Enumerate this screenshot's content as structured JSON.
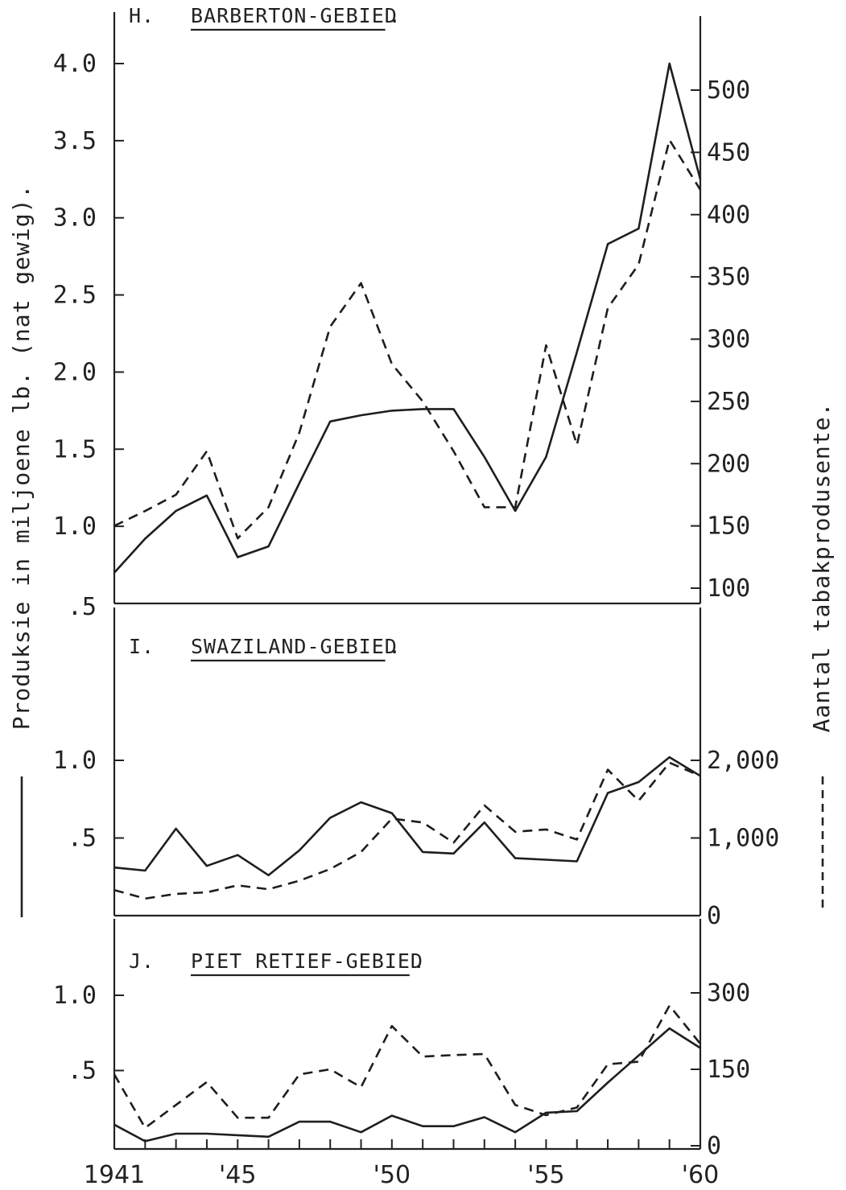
{
  "chart_data": {
    "y_left_title": "Produksie in miljoene lb. (nat gewig).",
    "y_right_title": "Aantal tabakprodusente.",
    "x_tick_labels": [
      "1941",
      "'45",
      "'50",
      "'55",
      "'60"
    ],
    "x_ticks": [
      1941,
      1945,
      1950,
      1955,
      1960
    ],
    "x_range": [
      1941,
      1960
    ],
    "panels": [
      {
        "id": "H",
        "letter": "H.",
        "title": "BARBERTON-GEBIED",
        "type": "line",
        "ylim_left": [
          0.5,
          4.0
        ],
        "ylim_right": [
          100,
          500
        ],
        "left_ticks": [
          4.0,
          3.5,
          3.0,
          2.5,
          2.0,
          1.5,
          1.0
        ],
        "left_tick_labels": [
          "4.0",
          "3.5",
          "3.0",
          "2.5",
          "2.0",
          "1.5",
          "1.0"
        ],
        "left_bottom_label": ".5",
        "right_ticks": [
          500,
          450,
          400,
          350,
          300,
          250,
          200,
          150,
          100
        ],
        "right_tick_labels": [
          "500",
          "450",
          "400",
          "350",
          "300",
          "250",
          "200",
          "150",
          "100"
        ],
        "series": [
          {
            "axis": "left",
            "style": "solid",
            "x": [
              1941,
              1942,
              1943,
              1944,
              1945,
              1946,
              1947,
              1948,
              1949,
              1950,
              1951,
              1952,
              1953,
              1954,
              1955,
              1956,
              1957,
              1958,
              1959,
              1960
            ],
            "values": [
              0.7,
              0.92,
              1.1,
              1.2,
              0.8,
              0.87,
              1.28,
              1.68,
              1.72,
              1.75,
              1.76,
              1.76,
              1.45,
              1.1,
              1.45,
              2.13,
              2.83,
              2.93,
              4.0,
              3.25
            ]
          },
          {
            "axis": "right",
            "style": "dashed",
            "x": [
              1941,
              1942,
              1943,
              1944,
              1945,
              1946,
              1947,
              1948,
              1949,
              1950,
              1951,
              1952,
              1953,
              1954,
              1955,
              1956,
              1957,
              1958,
              1959,
              1960
            ],
            "values": [
              150,
              162,
              175,
              210,
              140,
              165,
              225,
              310,
              345,
              280,
              250,
              210,
              165,
              165,
              295,
              215,
              325,
              360,
              460,
              420
            ]
          }
        ]
      },
      {
        "id": "I",
        "letter": "I.",
        "title": "SWAZILAND-GEBIED",
        "type": "line",
        "ylim_left": [
          0,
          1.0
        ],
        "ylim_right": [
          0,
          2000
        ],
        "left_ticks": [
          1.0,
          0.5
        ],
        "left_tick_labels": [
          "1.0",
          ".5"
        ],
        "right_ticks": [
          2000,
          1000,
          0
        ],
        "right_tick_labels": [
          "2,000",
          "1,000",
          "0"
        ],
        "series": [
          {
            "axis": "left",
            "style": "solid",
            "x": [
              1941,
              1942,
              1943,
              1944,
              1945,
              1946,
              1947,
              1948,
              1949,
              1950,
              1951,
              1952,
              1953,
              1954,
              1955,
              1956,
              1957,
              1958,
              1959,
              1960
            ],
            "values": [
              0.31,
              0.29,
              0.56,
              0.32,
              0.39,
              0.26,
              0.42,
              0.63,
              0.73,
              0.66,
              0.41,
              0.4,
              0.6,
              0.37,
              0.36,
              0.35,
              0.79,
              0.86,
              1.02,
              0.9
            ]
          },
          {
            "axis": "right",
            "style": "dashed",
            "x": [
              1941,
              1942,
              1943,
              1944,
              1945,
              1946,
              1947,
              1948,
              1949,
              1950,
              1951,
              1952,
              1953,
              1954,
              1955,
              1956,
              1957,
              1958,
              1959,
              1960
            ],
            "values": [
              330,
              220,
              280,
              300,
              390,
              340,
              450,
              600,
              820,
              1250,
              1200,
              940,
              1420,
              1080,
              1110,
              980,
              1880,
              1480,
              1970,
              1800
            ]
          }
        ]
      },
      {
        "id": "J",
        "letter": "J.",
        "title": "PIET RETIEF-GEBIED",
        "type": "line",
        "ylim_left": [
          0,
          1.0
        ],
        "ylim_right": [
          0,
          300
        ],
        "left_ticks": [
          1.0,
          0.5
        ],
        "left_tick_labels": [
          "1.0",
          ".5"
        ],
        "right_ticks": [
          300,
          150,
          0
        ],
        "right_tick_labels": [
          "300",
          "150",
          "0"
        ],
        "series": [
          {
            "axis": "left",
            "style": "solid",
            "x": [
              1941,
              1942,
              1943,
              1944,
              1945,
              1946,
              1947,
              1948,
              1949,
              1950,
              1951,
              1952,
              1953,
              1954,
              1955,
              1956,
              1957,
              1958,
              1959,
              1960
            ],
            "values": [
              0.14,
              0.03,
              0.08,
              0.08,
              0.07,
              0.06,
              0.16,
              0.16,
              0.09,
              0.2,
              0.13,
              0.13,
              0.19,
              0.09,
              0.22,
              0.23,
              0.42,
              0.6,
              0.78,
              0.65
            ]
          },
          {
            "axis": "right",
            "style": "dashed",
            "x": [
              1941,
              1942,
              1943,
              1944,
              1945,
              1946,
              1947,
              1948,
              1949,
              1950,
              1951,
              1952,
              1953,
              1954,
              1955,
              1956,
              1957,
              1958,
              1959,
              1960
            ],
            "values": [
              140,
              35,
              80,
              125,
              55,
              55,
              140,
              150,
              115,
              235,
              175,
              178,
              180,
              80,
              60,
              75,
              160,
              165,
              275,
              200
            ]
          }
        ]
      }
    ]
  }
}
